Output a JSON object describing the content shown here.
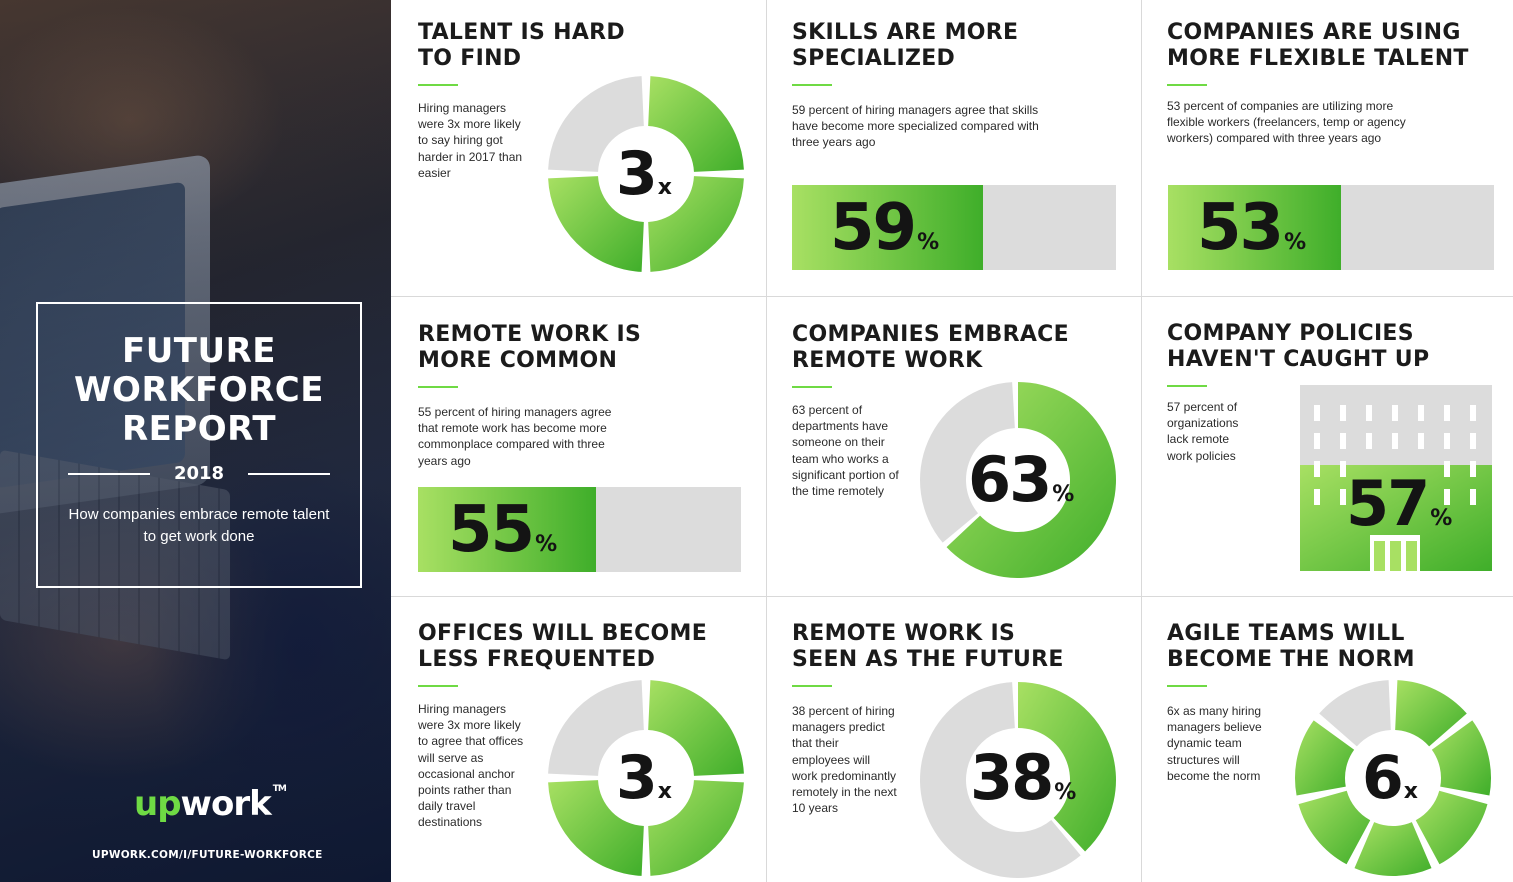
{
  "hero": {
    "title": "FUTURE WORKFORCE REPORT",
    "title_lines": [
      "FUTURE",
      "WORKFORCE",
      "REPORT"
    ],
    "year": "2018",
    "subtitle": "How companies embrace remote talent to get work done",
    "logo_prefix": "up",
    "logo_suffix": "work",
    "logo_tm": "TM",
    "url": "UPWORK.COM/I/FUTURE-WORKFORCE"
  },
  "colors": {
    "green_light": "#a8e063",
    "green_dark": "#3fae2a",
    "grey": "#dcdcdc"
  },
  "cards": [
    {
      "title": "TALENT IS HARD TO FIND",
      "title_lines": [
        "TALENT IS HARD",
        "TO FIND"
      ],
      "text": "Hiring managers were 3x more likely to say hiring got harder in 2017 than easier",
      "value": "3",
      "unit": "x",
      "visual": "quarter-ring",
      "green_segments": 3,
      "total_segments": 4
    },
    {
      "title": "SKILLS ARE MORE SPECIALIZED",
      "title_lines": [
        "SKILLS ARE MORE",
        "SPECIALIZED"
      ],
      "text": "59 percent of hiring managers agree that skills have become more specialized compared with three years ago",
      "value": "59",
      "unit": "%",
      "visual": "bar",
      "percent": 59
    },
    {
      "title": "COMPANIES ARE USING MORE FLEXIBLE TALENT",
      "title_lines": [
        "COMPANIES ARE USING",
        "MORE FLEXIBLE TALENT"
      ],
      "text": "53 percent of companies are utilizing more flexible workers (freelancers, temp or agency workers) compared with three years ago",
      "value": "53",
      "unit": "%",
      "visual": "bar",
      "percent": 53
    },
    {
      "title": "REMOTE WORK IS MORE COMMON",
      "title_lines": [
        "REMOTE WORK IS",
        "MORE COMMON"
      ],
      "text": "55 percent of hiring managers agree that remote work has become more commonplace compared with three years ago",
      "value": "55",
      "unit": "%",
      "visual": "bar",
      "percent": 55
    },
    {
      "title": "COMPANIES EMBRACE REMOTE WORK",
      "title_lines": [
        "COMPANIES EMBRACE",
        "REMOTE WORK"
      ],
      "text": "63 percent of departments have someone on their team who works a significant portion of the time remotely",
      "value": "63",
      "unit": "%",
      "visual": "donut",
      "percent": 63
    },
    {
      "title": "COMPANY POLICIES HAVEN'T CAUGHT UP",
      "title_lines": [
        "COMPANY POLICIES",
        "HAVEN'T CAUGHT UP"
      ],
      "text": "57 percent of organizations lack remote work policies",
      "value": "57",
      "unit": "%",
      "visual": "building",
      "percent": 57
    },
    {
      "title": "OFFICES WILL BECOME LESS FREQUENTED",
      "title_lines": [
        "OFFICES WILL BECOME",
        "LESS FREQUENTED"
      ],
      "text": "Hiring managers were 3x more likely to agree that offices will serve as occasional anchor points rather than daily travel destinations",
      "value": "3",
      "unit": "x",
      "visual": "quarter-ring",
      "green_segments": 3,
      "total_segments": 4
    },
    {
      "title": "REMOTE WORK IS SEEN AS THE FUTURE",
      "title_lines": [
        "REMOTE WORK IS",
        "SEEN AS THE FUTURE"
      ],
      "text": "38 percent of hiring managers predict that their employees will work predominantly remotely in the next 10 years",
      "value": "38",
      "unit": "%",
      "visual": "donut",
      "percent": 38
    },
    {
      "title": "AGILE TEAMS WILL BECOME THE NORM",
      "title_lines": [
        "AGILE TEAMS WILL",
        "BECOME THE NORM"
      ],
      "text": "6x as many hiring managers believe dynamic team structures will become the norm",
      "value": "6",
      "unit": "x",
      "visual": "segment-ring",
      "green_segments": 6,
      "total_segments": 7
    }
  ]
}
